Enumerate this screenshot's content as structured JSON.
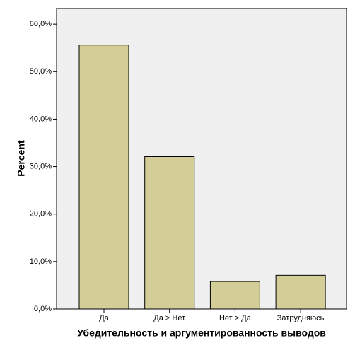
{
  "chart_data": {
    "type": "bar",
    "x_label": "Убедительность и аргументированность выводов",
    "y_label": "Percent",
    "categories": [
      "Да",
      "Да > Нет",
      "Нет > Да",
      "Затрудняюсь"
    ],
    "values": [
      55.6,
      32.1,
      5.8,
      7.1
    ],
    "color": "#d3ce97",
    "ylim": [
      0,
      63.3
    ],
    "yticks": [
      {
        "value": 0,
        "label": "0,0%"
      },
      {
        "value": 10,
        "label": "10,0%"
      },
      {
        "value": 20,
        "label": "20,0%"
      },
      {
        "value": 30,
        "label": "30,0%"
      },
      {
        "value": 40,
        "label": "40,0%"
      },
      {
        "value": 50,
        "label": "50,0%"
      },
      {
        "value": 60,
        "label": "60,0%"
      }
    ],
    "grid": false
  }
}
